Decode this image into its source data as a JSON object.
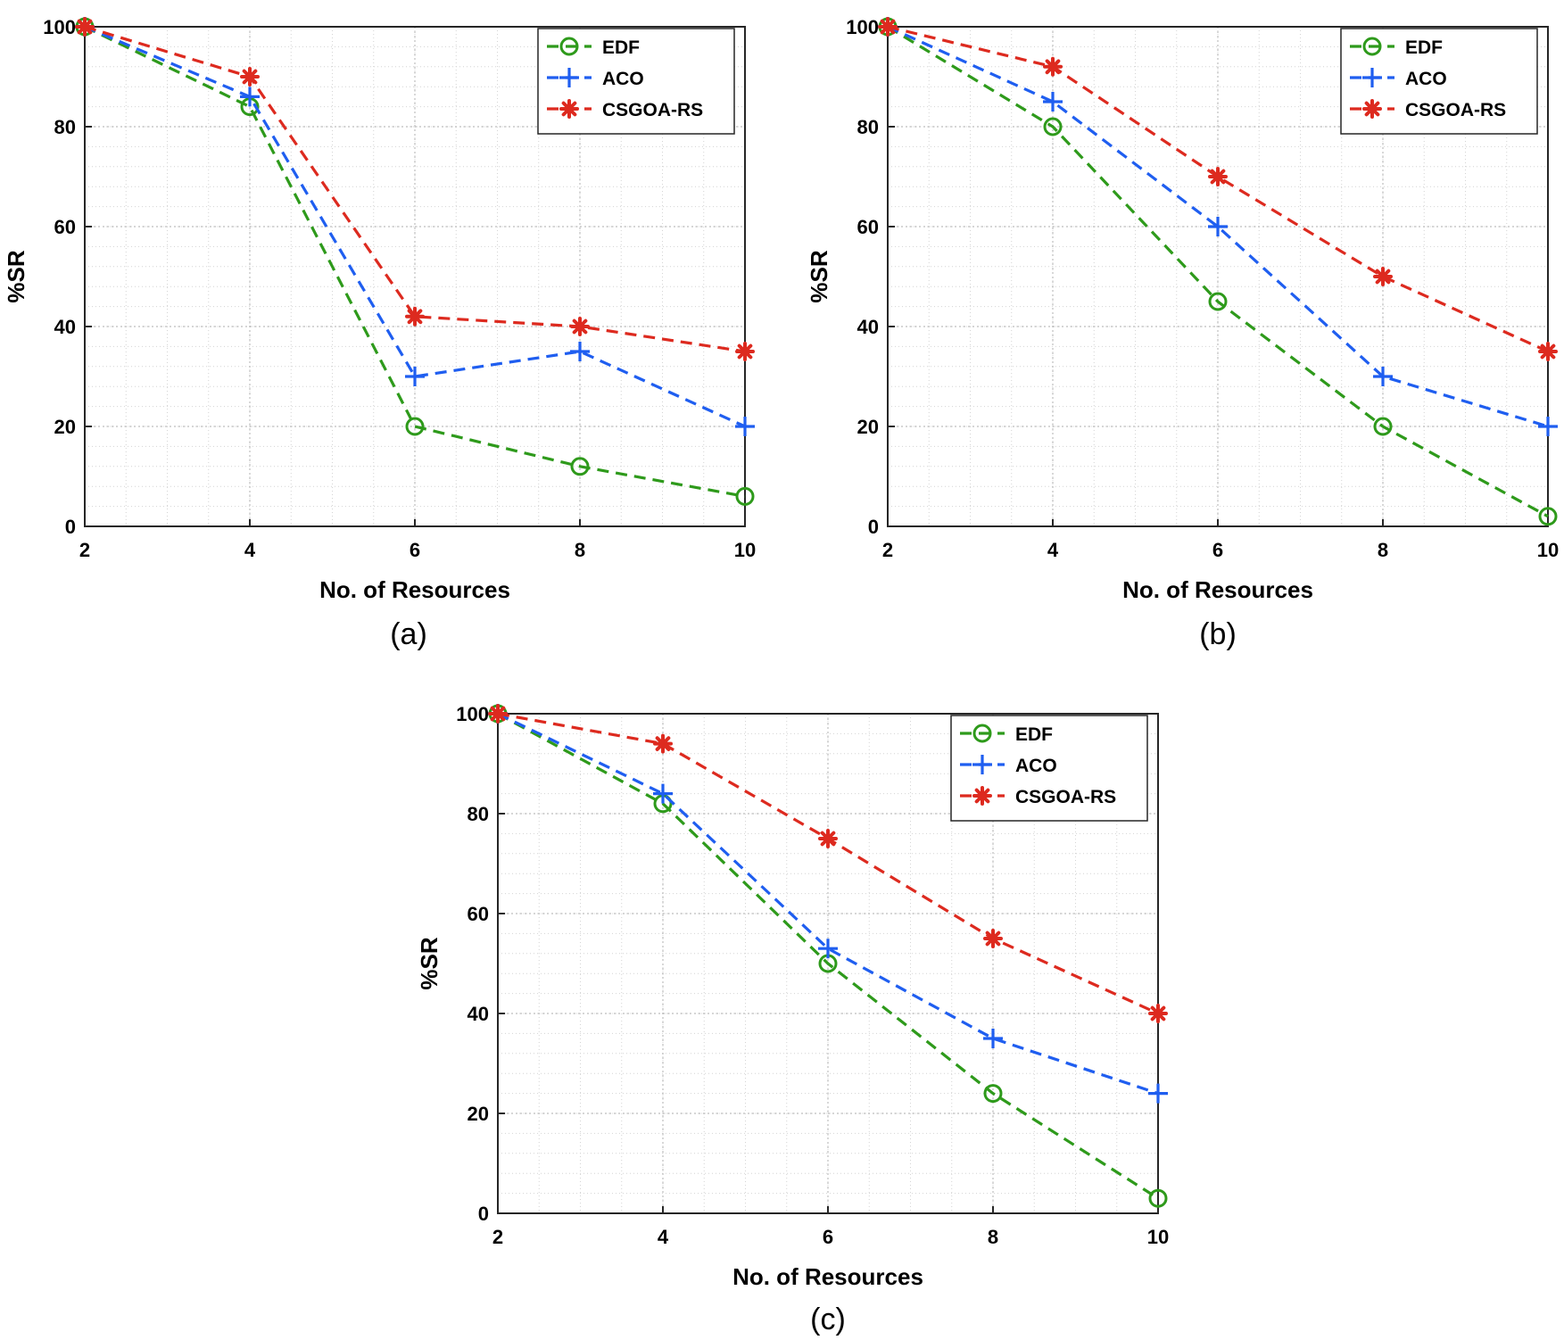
{
  "chart_data": [
    {
      "type": "line",
      "panel": "a",
      "caption": "(a)",
      "xlabel": "No. of Resources",
      "ylabel": "%SR",
      "x": [
        2,
        4,
        6,
        8,
        10
      ],
      "xlim": [
        2,
        10
      ],
      "ylim": [
        0,
        100
      ],
      "xticks": [
        2,
        4,
        6,
        8,
        10
      ],
      "yticks": [
        0,
        20,
        40,
        60,
        80,
        100
      ],
      "grid": true,
      "legend_position": "top-right",
      "series": [
        {
          "name": "EDF",
          "marker": "circle",
          "color": "#2e9a1b",
          "values": [
            100,
            84,
            20,
            12,
            6
          ]
        },
        {
          "name": "ACO",
          "marker": "plus",
          "color": "#1f5ef0",
          "values": [
            100,
            86,
            30,
            35,
            20
          ]
        },
        {
          "name": "CSGOA-RS",
          "marker": "star",
          "color": "#dd2a1f",
          "values": [
            100,
            90,
            42,
            40,
            35
          ]
        }
      ]
    },
    {
      "type": "line",
      "panel": "b",
      "caption": "(b)",
      "xlabel": "No. of Resources",
      "ylabel": "%SR",
      "x": [
        2,
        4,
        6,
        8,
        10
      ],
      "xlim": [
        2,
        10
      ],
      "ylim": [
        0,
        100
      ],
      "xticks": [
        2,
        4,
        6,
        8,
        10
      ],
      "yticks": [
        0,
        20,
        40,
        60,
        80,
        100
      ],
      "grid": true,
      "legend_position": "top-right",
      "series": [
        {
          "name": "EDF",
          "marker": "circle",
          "color": "#2e9a1b",
          "values": [
            100,
            80,
            45,
            20,
            2
          ]
        },
        {
          "name": "ACO",
          "marker": "plus",
          "color": "#1f5ef0",
          "values": [
            100,
            85,
            60,
            30,
            20
          ]
        },
        {
          "name": "CSGOA-RS",
          "marker": "star",
          "color": "#dd2a1f",
          "values": [
            100,
            92,
            70,
            50,
            35
          ]
        }
      ]
    },
    {
      "type": "line",
      "panel": "c",
      "caption": "(c)",
      "xlabel": "No. of Resources",
      "ylabel": "%SR",
      "x": [
        2,
        4,
        6,
        8,
        10
      ],
      "xlim": [
        2,
        10
      ],
      "ylim": [
        0,
        100
      ],
      "xticks": [
        2,
        4,
        6,
        8,
        10
      ],
      "yticks": [
        0,
        20,
        40,
        60,
        80,
        100
      ],
      "grid": true,
      "legend_position": "top-right",
      "series": [
        {
          "name": "EDF",
          "marker": "circle",
          "color": "#2e9a1b",
          "values": [
            100,
            82,
            50,
            24,
            3
          ]
        },
        {
          "name": "ACO",
          "marker": "plus",
          "color": "#1f5ef0",
          "values": [
            100,
            84,
            53,
            35,
            24
          ]
        },
        {
          "name": "CSGOA-RS",
          "marker": "star",
          "color": "#dd2a1f",
          "values": [
            100,
            94,
            75,
            55,
            40
          ]
        }
      ]
    }
  ]
}
